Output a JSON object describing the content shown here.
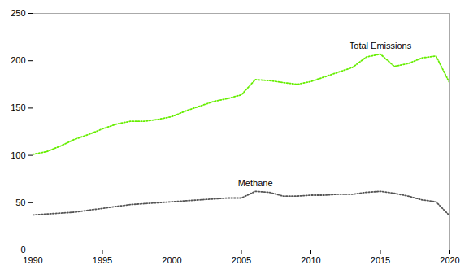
{
  "chart_data": {
    "type": "line",
    "x": [
      1990,
      1991,
      1992,
      1993,
      1994,
      1995,
      1996,
      1997,
      1998,
      1999,
      2000,
      2001,
      2002,
      2003,
      2004,
      2005,
      2006,
      2007,
      2008,
      2009,
      2010,
      2011,
      2012,
      2013,
      2014,
      2015,
      2016,
      2017,
      2018,
      2019,
      2020
    ],
    "series": [
      {
        "name": "Total Emissions",
        "color": "#66ee00",
        "line_style": "dotted",
        "values": [
          101,
          104,
          110,
          117,
          122,
          128,
          133,
          136,
          136,
          138,
          141,
          147,
          152,
          157,
          160,
          164,
          180,
          179,
          177,
          175,
          178,
          183,
          188,
          193,
          204,
          207,
          194,
          197,
          203,
          205,
          176
        ]
      },
      {
        "name": "Methane",
        "color": "#555555",
        "line_style": "dotted",
        "values": [
          37,
          38,
          39,
          40,
          42,
          44,
          46,
          48,
          49,
          50,
          51,
          52,
          53,
          54,
          55,
          55,
          62,
          61,
          57,
          57,
          58,
          58,
          59,
          59,
          61,
          62,
          60,
          57,
          53,
          51,
          36
        ]
      }
    ],
    "xlim": [
      1990,
      2020
    ],
    "xticks": [
      1990,
      1995,
      2000,
      2005,
      2010,
      2015,
      2020
    ],
    "ylim": [
      0,
      250
    ],
    "yticks": [
      0,
      50,
      100,
      150,
      200,
      250
    ],
    "grid": false
  }
}
